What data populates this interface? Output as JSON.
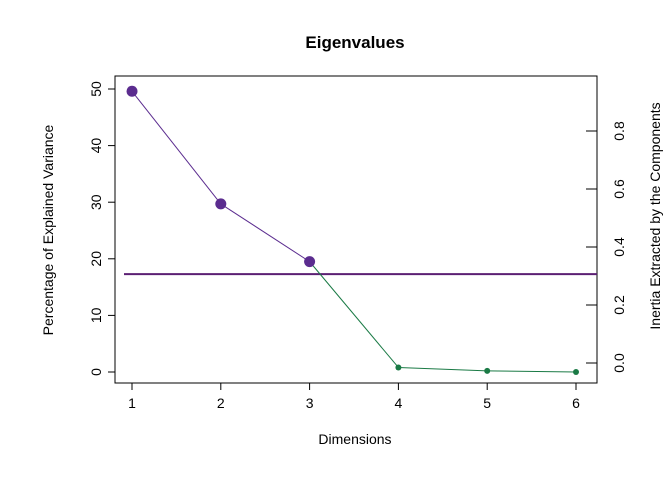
{
  "chart_data": {
    "type": "line",
    "title": "Eigenvalues",
    "xlabel": "Dimensions",
    "ylabel": "Percentage of Explained Variance",
    "y2label": "Inertia Extracted by the Components",
    "x": [
      1,
      2,
      3,
      4,
      5,
      6
    ],
    "x_ticks": [
      "1",
      "2",
      "3",
      "4",
      "5",
      "6"
    ],
    "xlim": [
      1,
      6
    ],
    "y_ticks": [
      "0",
      "10",
      "20",
      "30",
      "40",
      "50"
    ],
    "ylim": [
      0,
      50
    ],
    "y2_ticks": [
      "0.0",
      "0.2",
      "0.4",
      "0.6",
      "0.8"
    ],
    "y2lim": [
      0,
      0.8
    ],
    "grid": false,
    "series": [
      {
        "values": [
          49.6,
          29.7,
          19.5,
          0.8,
          0.2,
          0.0
        ]
      }
    ],
    "highlighted_points": 3,
    "reference_line_y": 17.3,
    "colors": {
      "significant": "#5b2c8f",
      "nonsignificant": "#1a7a45",
      "reference_line": "#5b1f73",
      "axis": "#000000"
    }
  }
}
